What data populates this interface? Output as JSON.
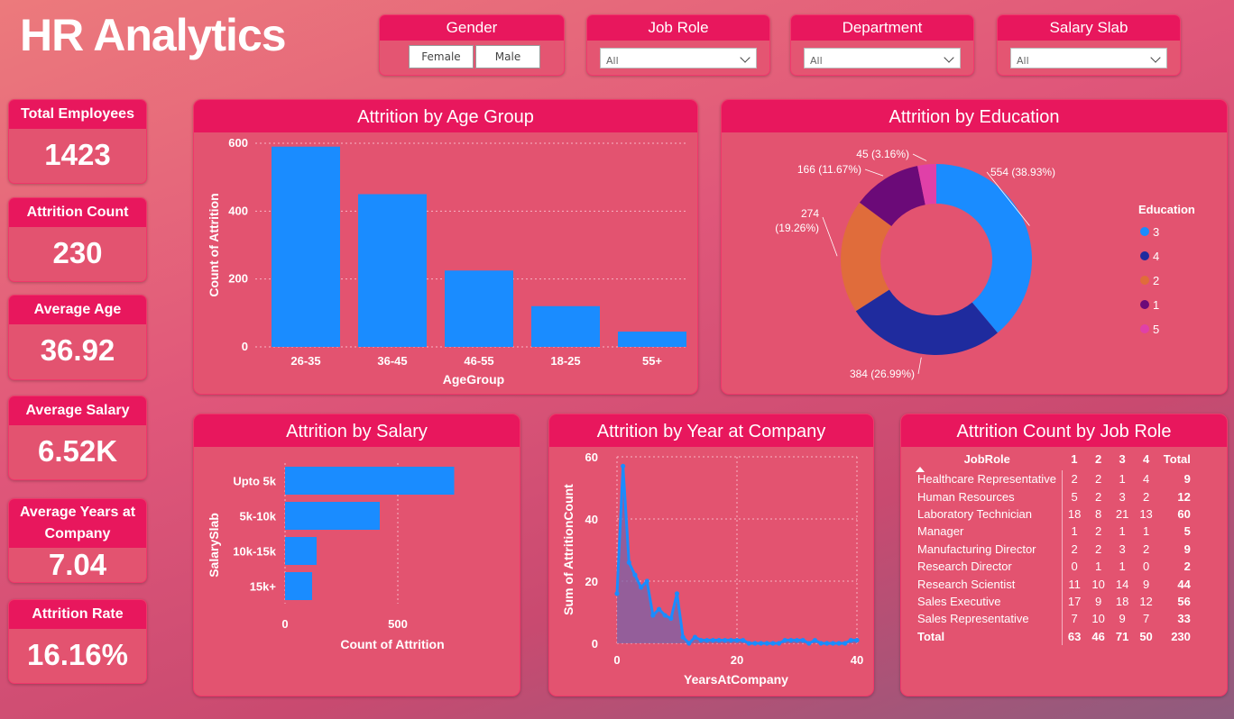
{
  "header": {
    "title": "HR Analytics"
  },
  "slicers": {
    "gender": {
      "label": "Gender",
      "options": [
        "Female",
        "Male"
      ]
    },
    "job_role": {
      "label": "Job Role",
      "value": "All"
    },
    "department": {
      "label": "Department",
      "value": "All"
    },
    "salary_slab": {
      "label": "Salary Slab",
      "value": "All"
    }
  },
  "kpis": [
    {
      "label": "Total Employees",
      "value": "1423"
    },
    {
      "label": "Attrition Count",
      "value": "230"
    },
    {
      "label": "Average Age",
      "value": "36.92"
    },
    {
      "label": "Average Salary",
      "value": "6.52K"
    },
    {
      "label": "Average Years at Company",
      "value": "7.04"
    },
    {
      "label": "Attrition Rate",
      "value": "16.16%"
    }
  ],
  "colors": {
    "bar": "#1a8cff",
    "header": "#e8175d"
  },
  "chart_data": [
    {
      "type": "bar",
      "title": "Attrition by Age Group",
      "categories": [
        "26-35",
        "36-45",
        "46-55",
        "18-25",
        "55+"
      ],
      "values": [
        590,
        450,
        225,
        120,
        45
      ],
      "xlabel": "AgeGroup",
      "ylabel": "Count of Attrition",
      "ylim": [
        0,
        600
      ],
      "yticks": [
        "0",
        "200",
        "400",
        "600"
      ],
      "grid": true
    },
    {
      "type": "pie",
      "title": "Attrition by Education",
      "legend_title": "Education",
      "legend_position": "right",
      "categories": [
        "3",
        "4",
        "2",
        "1",
        "5"
      ],
      "values": [
        554,
        384,
        274,
        166,
        45
      ],
      "labels": [
        "554 (38.93%)",
        "384 (26.99%)",
        "274 (19.26%)",
        "166 (11.67%)",
        "45 (3.16%)"
      ],
      "colors": [
        "#1a8cff",
        "#1f2b9e",
        "#e06c3b",
        "#6b0a78",
        "#e040a8"
      ]
    },
    {
      "type": "bar",
      "title": "Attrition by Salary",
      "orientation": "horizontal",
      "categories": [
        "Upto 5k",
        "5k-10k",
        "10k-15k",
        "15k+"
      ],
      "values": [
        750,
        420,
        140,
        120
      ],
      "xlabel": "Count of Attrition",
      "ylabel": "SalarySlab",
      "xlim": [
        0,
        1000
      ],
      "xticks": [
        "0",
        "500"
      ],
      "grid": true
    },
    {
      "type": "area",
      "title": "Attrition by Year at Company",
      "x": [
        0,
        1,
        2,
        3,
        4,
        5,
        6,
        7,
        8,
        9,
        10,
        11,
        12,
        13,
        14,
        15,
        16,
        17,
        18,
        19,
        20,
        21,
        22,
        23,
        24,
        25,
        26,
        27,
        28,
        29,
        30,
        31,
        32,
        33,
        34,
        35,
        36,
        37,
        38,
        39,
        40
      ],
      "y": [
        16,
        57,
        26,
        22,
        18,
        20,
        9,
        11,
        9,
        8,
        16,
        2,
        0,
        2,
        1,
        1,
        1,
        1,
        1,
        1,
        1,
        1,
        0,
        0,
        0,
        0,
        0,
        0,
        1,
        1,
        1,
        1,
        0,
        1,
        0,
        0,
        0,
        0,
        0,
        1,
        1
      ],
      "xlabel": "YearsAtCompany",
      "ylabel": "Sum of AttritionCount",
      "xlim": [
        0,
        40
      ],
      "ylim": [
        0,
        60
      ],
      "xticks": [
        "0",
        "20",
        "40"
      ],
      "yticks": [
        "0",
        "20",
        "40",
        "60"
      ],
      "grid": true
    }
  ],
  "job_role_table": {
    "title": "Attrition Count by Job Role",
    "columns": [
      "JobRole",
      "1",
      "2",
      "3",
      "4",
      "Total"
    ],
    "rows": [
      [
        "Healthcare Representative",
        "2",
        "2",
        "1",
        "4",
        "9"
      ],
      [
        "Human Resources",
        "5",
        "2",
        "3",
        "2",
        "12"
      ],
      [
        "Laboratory Technician",
        "18",
        "8",
        "21",
        "13",
        "60"
      ],
      [
        "Manager",
        "1",
        "2",
        "1",
        "1",
        "5"
      ],
      [
        "Manufacturing Director",
        "2",
        "2",
        "3",
        "2",
        "9"
      ],
      [
        "Research Director",
        "0",
        "1",
        "1",
        "0",
        "2"
      ],
      [
        "Research Scientist",
        "11",
        "10",
        "14",
        "9",
        "44"
      ],
      [
        "Sales Executive",
        "17",
        "9",
        "18",
        "12",
        "56"
      ],
      [
        "Sales Representative",
        "7",
        "10",
        "9",
        "7",
        "33"
      ]
    ],
    "total_row": [
      "Total",
      "63",
      "46",
      "71",
      "50",
      "230"
    ]
  }
}
